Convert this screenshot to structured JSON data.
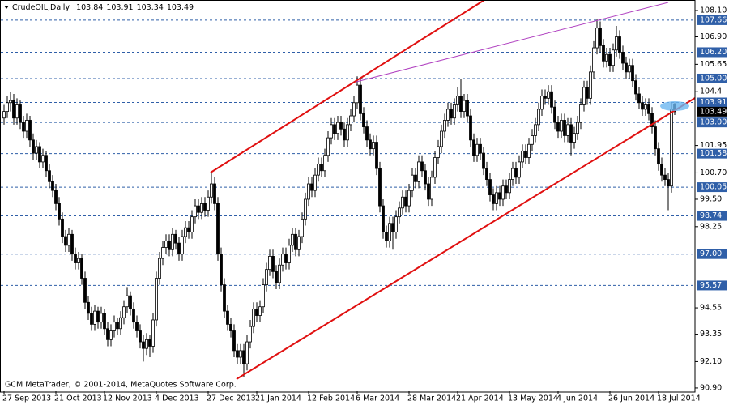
{
  "chart_data": {
    "type": "candlestick",
    "symbol": "CrudeOIL,Daily",
    "footer": "GCM MetaTrader, © 2001-2014, MetaQuotes Software Corp.",
    "ylim": [
      90.75,
      108.58
    ],
    "yticks": [
      {
        "value": 108.1,
        "label": "108.10"
      },
      {
        "value": 106.9,
        "label": "106.90"
      },
      105.65,
      104.4,
      101.95,
      {
        "value": 100.7,
        "label": "100.70"
      },
      {
        "value": 99.5,
        "label": "99.50"
      },
      98.25,
      94.55,
      93.35,
      {
        "value": 92.1,
        "label": "92.10"
      },
      {
        "value": 90.9,
        "label": "90.90"
      }
    ],
    "levels": [
      107.66,
      {
        "value": 106.2,
        "label": "106.20"
      },
      {
        "value": 105,
        "label": "105.00"
      },
      103.91,
      {
        "value": 103,
        "label": "103.00"
      },
      101.58,
      100.05,
      98.74,
      {
        "value": 97,
        "label": "97.00"
      },
      95.57
    ],
    "up_color": "#ffffff",
    "down_color": "#000000",
    "level_color": "#2f5fa8",
    "grid": false,
    "categories": [
      "27 Sep 2013",
      null,
      null,
      null,
      null,
      null,
      null,
      null,
      null,
      null,
      null,
      null,
      null,
      null,
      null,
      null,
      "21 Oct 2013",
      null,
      null,
      null,
      null,
      null,
      null,
      null,
      null,
      null,
      null,
      null,
      null,
      null,
      null,
      "12 Nov 2013",
      null,
      null,
      null,
      null,
      null,
      null,
      null,
      null,
      null,
      null,
      null,
      null,
      null,
      null,
      null,
      "4 Dec 2013",
      null,
      null,
      null,
      null,
      null,
      null,
      null,
      null,
      null,
      null,
      null,
      null,
      null,
      null,
      null,
      "27 Dec 2013",
      null,
      null,
      null,
      null,
      null,
      null,
      null,
      null,
      null,
      null,
      null,
      null,
      null,
      null,
      "21 Jan 2014",
      null,
      null,
      null,
      null,
      null,
      null,
      null,
      null,
      null,
      null,
      null,
      null,
      null,
      null,
      null,
      "12 Feb 2014",
      null,
      null,
      null,
      null,
      null,
      null,
      null,
      null,
      null,
      null,
      null,
      null,
      null,
      null,
      "6 Mar 2014",
      null,
      null,
      null,
      null,
      null,
      null,
      null,
      null,
      null,
      null,
      null,
      null,
      null,
      null,
      null,
      "28 Mar 2014",
      null,
      null,
      null,
      null,
      null,
      null,
      null,
      null,
      null,
      null,
      null,
      null,
      null,
      null,
      "21 Apr 2014",
      null,
      null,
      null,
      null,
      null,
      null,
      null,
      null,
      null,
      null,
      null,
      null,
      null,
      null,
      null,
      "13 May 2014",
      null,
      null,
      null,
      null,
      null,
      null,
      null,
      null,
      null,
      null,
      null,
      null,
      null,
      null,
      "4 Jun 2014",
      null,
      null,
      null,
      null,
      null,
      null,
      null,
      null,
      null,
      null,
      null,
      null,
      null,
      null,
      null,
      "26 Jun 2014",
      null,
      null,
      null,
      null,
      null,
      null,
      null,
      null,
      null,
      null,
      null,
      null,
      null,
      null,
      "18 Jul 2014",
      null,
      null,
      null,
      null,
      null
    ],
    "candles": [
      [
        103.2,
        103.8,
        102.9,
        103.5
      ],
      [
        103.5,
        104.2,
        103.2,
        103.9
      ],
      [
        103.9,
        104.4,
        103.5,
        104.0
      ],
      [
        104.0,
        104.3,
        102.9,
        103.2
      ],
      [
        103.2,
        104.1,
        102.9,
        103.8
      ],
      [
        103.8,
        104.0,
        102.7,
        103.0
      ],
      [
        103.0,
        103.3,
        102.3,
        102.6
      ],
      [
        102.6,
        103.4,
        102.3,
        103.1
      ],
      [
        103.1,
        103.3,
        101.9,
        102.2
      ],
      [
        102.2,
        102.5,
        101.3,
        101.6
      ],
      [
        101.6,
        102.2,
        101.3,
        101.9
      ],
      [
        101.9,
        102.1,
        100.9,
        101.2
      ],
      [
        101.2,
        101.8,
        100.9,
        101.5
      ],
      [
        101.5,
        101.7,
        100.5,
        100.8
      ],
      [
        100.8,
        101.1,
        100.0,
        100.3
      ],
      [
        100.3,
        100.6,
        99.6,
        99.9
      ],
      [
        99.9,
        100.2,
        99.0,
        99.3
      ],
      [
        99.3,
        99.6,
        98.3,
        98.6
      ],
      [
        98.6,
        98.9,
        97.5,
        97.8
      ],
      [
        97.8,
        98.1,
        97.1,
        97.4
      ],
      [
        97.4,
        98.2,
        97.1,
        97.9
      ],
      [
        97.9,
        98.1,
        96.7,
        97.0
      ],
      [
        97.0,
        97.3,
        96.3,
        96.6
      ],
      [
        96.6,
        97.1,
        96.3,
        96.8
      ],
      [
        96.8,
        97.0,
        95.6,
        95.9
      ],
      [
        95.9,
        96.2,
        94.5,
        94.8
      ],
      [
        94.8,
        95.1,
        94.0,
        94.3
      ],
      [
        94.3,
        94.6,
        93.5,
        93.8
      ],
      [
        93.8,
        94.7,
        93.5,
        94.4
      ],
      [
        94.4,
        94.6,
        93.6,
        93.9
      ],
      [
        93.9,
        94.6,
        93.6,
        94.3
      ],
      [
        94.3,
        94.5,
        93.3,
        93.6
      ],
      [
        93.6,
        93.9,
        92.8,
        93.1
      ],
      [
        93.1,
        93.8,
        92.8,
        93.5
      ],
      [
        93.5,
        94.2,
        93.2,
        93.9
      ],
      [
        93.9,
        94.1,
        93.3,
        93.6
      ],
      [
        93.6,
        94.4,
        93.3,
        94.1
      ],
      [
        94.1,
        94.9,
        93.8,
        94.6
      ],
      [
        94.6,
        95.5,
        94.3,
        95.1
      ],
      [
        95.1,
        95.3,
        94.2,
        94.5
      ],
      [
        94.5,
        94.8,
        93.6,
        93.9
      ],
      [
        93.9,
        94.2,
        93.2,
        93.5
      ],
      [
        93.5,
        93.8,
        92.7,
        93.0
      ],
      [
        93.0,
        93.3,
        92.1,
        92.7
      ],
      [
        92.7,
        93.4,
        92.4,
        93.1
      ],
      [
        93.1,
        93.3,
        92.3,
        92.8
      ],
      [
        92.8,
        94.3,
        92.5,
        94.0
      ],
      [
        94.0,
        96.2,
        93.7,
        95.9
      ],
      [
        95.9,
        97.1,
        95.6,
        96.8
      ],
      [
        96.8,
        97.6,
        96.5,
        97.3
      ],
      [
        97.3,
        97.9,
        97.0,
        97.6
      ],
      [
        97.6,
        97.9,
        96.9,
        97.2
      ],
      [
        97.2,
        98.2,
        96.9,
        97.9
      ],
      [
        97.9,
        98.1,
        97.2,
        97.5
      ],
      [
        97.5,
        97.8,
        96.7,
        97.0
      ],
      [
        97.0,
        98.1,
        96.7,
        97.8
      ],
      [
        97.8,
        98.5,
        97.5,
        98.2
      ],
      [
        98.2,
        98.5,
        97.7,
        98.0
      ],
      [
        98.0,
        99.0,
        97.7,
        98.7
      ],
      [
        98.7,
        99.5,
        98.4,
        99.2
      ],
      [
        99.2,
        99.5,
        98.6,
        98.9
      ],
      [
        98.9,
        99.6,
        98.6,
        99.3
      ],
      [
        99.3,
        99.6,
        98.7,
        99.0
      ],
      [
        99.0,
        99.9,
        98.7,
        99.6
      ],
      [
        99.6,
        100.7,
        99.3,
        100.2
      ],
      [
        100.2,
        100.5,
        99.0,
        99.3
      ],
      [
        99.3,
        99.6,
        96.7,
        97.0
      ],
      [
        97.0,
        97.3,
        95.3,
        95.6
      ],
      [
        95.6,
        95.9,
        94.1,
        94.4
      ],
      [
        94.4,
        94.7,
        93.5,
        93.8
      ],
      [
        93.8,
        94.1,
        93.2,
        93.5
      ],
      [
        93.5,
        93.8,
        92.3,
        92.6
      ],
      [
        92.6,
        92.9,
        92.0,
        92.3
      ],
      [
        92.3,
        92.9,
        92.0,
        92.6
      ],
      [
        92.6,
        92.9,
        91.4,
        92.0
      ],
      [
        92.0,
        93.3,
        91.7,
        93.0
      ],
      [
        93.0,
        94.0,
        92.7,
        93.7
      ],
      [
        93.7,
        94.8,
        93.4,
        94.5
      ],
      [
        94.5,
        94.8,
        93.9,
        94.2
      ],
      [
        94.2,
        94.9,
        93.9,
        94.6
      ],
      [
        94.6,
        95.9,
        94.3,
        95.6
      ],
      [
        95.6,
        96.6,
        95.3,
        96.3
      ],
      [
        96.3,
        97.2,
        96.0,
        96.9
      ],
      [
        96.9,
        97.2,
        95.9,
        96.2
      ],
      [
        96.2,
        96.5,
        95.4,
        95.7
      ],
      [
        95.7,
        96.8,
        95.4,
        96.5
      ],
      [
        96.5,
        97.3,
        96.2,
        97.0
      ],
      [
        97.0,
        97.3,
        96.3,
        96.6
      ],
      [
        96.6,
        97.7,
        96.3,
        97.4
      ],
      [
        97.4,
        98.2,
        97.1,
        97.9
      ],
      [
        97.9,
        98.2,
        96.9,
        97.2
      ],
      [
        97.2,
        98.1,
        96.9,
        97.8
      ],
      [
        97.8,
        98.9,
        97.5,
        98.6
      ],
      [
        98.6,
        99.8,
        98.3,
        99.5
      ],
      [
        99.5,
        100.5,
        99.2,
        100.2
      ],
      [
        100.2,
        100.5,
        99.6,
        99.9
      ],
      [
        99.9,
        100.9,
        99.6,
        100.6
      ],
      [
        100.6,
        101.4,
        100.3,
        101.1
      ],
      [
        101.1,
        101.4,
        100.5,
        100.8
      ],
      [
        100.8,
        101.8,
        100.5,
        101.5
      ],
      [
        101.5,
        102.6,
        101.2,
        102.3
      ],
      [
        102.3,
        103.2,
        102.0,
        102.9
      ],
      [
        102.9,
        103.2,
        102.2,
        102.5
      ],
      [
        102.5,
        103.3,
        102.2,
        103.0
      ],
      [
        103.0,
        103.3,
        102.4,
        102.7
      ],
      [
        102.7,
        103.0,
        101.9,
        102.2
      ],
      [
        102.2,
        103.2,
        101.9,
        102.9
      ],
      [
        102.9,
        103.6,
        102.6,
        103.3
      ],
      [
        103.3,
        104.2,
        103.0,
        103.9
      ],
      [
        103.9,
        105.1,
        103.6,
        104.7
      ],
      [
        104.7,
        105.0,
        103.1,
        103.4
      ],
      [
        103.4,
        103.7,
        102.5,
        102.8
      ],
      [
        102.8,
        103.1,
        101.9,
        102.2
      ],
      [
        102.2,
        102.5,
        101.5,
        101.8
      ],
      [
        101.8,
        102.4,
        101.5,
        102.1
      ],
      [
        102.1,
        102.4,
        100.6,
        100.9
      ],
      [
        100.9,
        101.2,
        98.9,
        99.2
      ],
      [
        99.2,
        99.5,
        97.7,
        98.0
      ],
      [
        98.0,
        98.3,
        97.3,
        97.6
      ],
      [
        97.6,
        98.7,
        97.3,
        98.4
      ],
      [
        98.4,
        98.7,
        97.2,
        98.0
      ],
      [
        98.0,
        99.0,
        97.7,
        98.7
      ],
      [
        98.7,
        99.4,
        98.4,
        99.1
      ],
      [
        99.1,
        99.9,
        98.8,
        99.6
      ],
      [
        99.6,
        99.9,
        98.9,
        99.2
      ],
      [
        99.2,
        100.2,
        98.9,
        99.9
      ],
      [
        99.9,
        100.9,
        99.6,
        100.6
      ],
      [
        100.6,
        100.9,
        100.0,
        100.3
      ],
      [
        100.3,
        101.5,
        100.0,
        101.2
      ],
      [
        101.2,
        101.5,
        100.5,
        100.8
      ],
      [
        100.8,
        101.1,
        99.9,
        100.2
      ],
      [
        100.2,
        100.5,
        99.2,
        99.5
      ],
      [
        99.5,
        100.8,
        99.2,
        100.5
      ],
      [
        100.5,
        101.7,
        100.2,
        101.4
      ],
      [
        101.4,
        102.2,
        101.1,
        101.9
      ],
      [
        101.9,
        102.9,
        101.6,
        102.6
      ],
      [
        102.6,
        103.4,
        102.3,
        103.1
      ],
      [
        103.1,
        103.9,
        102.8,
        103.6
      ],
      [
        103.6,
        103.9,
        102.9,
        103.2
      ],
      [
        103.2,
        104.1,
        102.9,
        103.8
      ],
      [
        103.8,
        104.6,
        103.5,
        104.2
      ],
      [
        104.2,
        105.0,
        103.2,
        103.5
      ],
      [
        103.5,
        104.3,
        103.2,
        104.0
      ],
      [
        104.0,
        104.3,
        103.0,
        103.3
      ],
      [
        103.3,
        103.6,
        101.9,
        102.2
      ],
      [
        102.2,
        102.5,
        101.2,
        101.5
      ],
      [
        101.5,
        102.3,
        101.2,
        102.0
      ],
      [
        102.0,
        102.3,
        101.3,
        101.6
      ],
      [
        101.6,
        101.9,
        100.6,
        100.9
      ],
      [
        100.9,
        101.2,
        100.1,
        100.4
      ],
      [
        100.4,
        100.7,
        99.4,
        99.7
      ],
      [
        99.7,
        100.0,
        99.0,
        99.3
      ],
      [
        99.3,
        100.1,
        99.0,
        99.8
      ],
      [
        99.8,
        100.1,
        99.2,
        99.5
      ],
      [
        99.5,
        100.4,
        99.2,
        100.1
      ],
      [
        100.1,
        100.4,
        99.5,
        99.8
      ],
      [
        99.8,
        100.7,
        99.5,
        100.4
      ],
      [
        100.4,
        101.2,
        100.1,
        100.9
      ],
      [
        100.9,
        101.2,
        100.2,
        100.5
      ],
      [
        100.5,
        101.5,
        100.2,
        101.2
      ],
      [
        101.2,
        102.0,
        100.9,
        101.7
      ],
      [
        101.7,
        102.0,
        101.1,
        101.4
      ],
      [
        101.4,
        102.3,
        101.1,
        102.0
      ],
      [
        102.0,
        102.7,
        101.7,
        102.4
      ],
      [
        102.4,
        103.2,
        102.1,
        102.9
      ],
      [
        102.9,
        103.9,
        102.6,
        103.6
      ],
      [
        103.6,
        104.5,
        103.3,
        104.2
      ],
      [
        104.2,
        104.5,
        103.8,
        104.1
      ],
      [
        104.1,
        104.7,
        103.8,
        104.4
      ],
      [
        104.4,
        104.7,
        103.4,
        103.7
      ],
      [
        103.7,
        104.0,
        102.7,
        103.0
      ],
      [
        103.0,
        103.3,
        102.3,
        102.6
      ],
      [
        102.6,
        103.4,
        102.3,
        103.1
      ],
      [
        103.1,
        103.4,
        102.1,
        102.4
      ],
      [
        102.4,
        103.2,
        102.1,
        102.9
      ],
      [
        102.9,
        103.2,
        101.5,
        102.1
      ],
      [
        102.1,
        102.8,
        101.8,
        102.5
      ],
      [
        102.5,
        103.3,
        102.2,
        103.0
      ],
      [
        103.0,
        104.1,
        102.7,
        103.8
      ],
      [
        103.8,
        104.9,
        103.5,
        104.6
      ],
      [
        104.6,
        104.9,
        103.8,
        104.1
      ],
      [
        104.1,
        105.6,
        103.8,
        105.3
      ],
      [
        105.3,
        106.7,
        105.0,
        106.4
      ],
      [
        106.4,
        107.7,
        106.1,
        107.3
      ],
      [
        107.3,
        107.6,
        106.2,
        106.5
      ],
      [
        106.5,
        106.8,
        105.5,
        105.8
      ],
      [
        105.8,
        106.4,
        105.5,
        106.1
      ],
      [
        106.1,
        106.4,
        105.3,
        105.6
      ],
      [
        105.6,
        106.6,
        105.3,
        106.3
      ],
      [
        106.3,
        107.4,
        106.0,
        106.9
      ],
      [
        106.9,
        107.2,
        105.9,
        106.2
      ],
      [
        106.2,
        106.5,
        105.4,
        105.7
      ],
      [
        105.7,
        106.0,
        105.0,
        105.3
      ],
      [
        105.3,
        105.9,
        105.0,
        105.6
      ],
      [
        105.6,
        105.9,
        104.6,
        104.9
      ],
      [
        104.9,
        105.2,
        104.0,
        104.3
      ],
      [
        104.3,
        104.6,
        103.6,
        103.9
      ],
      [
        103.9,
        104.2,
        103.3,
        103.6
      ],
      [
        103.6,
        104.1,
        103.3,
        103.8
      ],
      [
        103.8,
        104.1,
        103.1,
        103.4
      ],
      [
        103.4,
        103.7,
        102.5,
        102.8
      ],
      [
        102.8,
        103.1,
        101.5,
        101.8
      ],
      [
        101.8,
        102.1,
        100.8,
        101.1
      ],
      [
        101.1,
        101.4,
        100.3,
        100.6
      ],
      [
        100.6,
        100.9,
        100.1,
        100.4
      ],
      [
        100.4,
        100.7,
        99.0,
        100.1
      ],
      [
        100.1,
        103.9,
        99.8,
        103.6
      ],
      [
        103.84,
        103.91,
        103.34,
        103.49
      ]
    ]
  }
}
